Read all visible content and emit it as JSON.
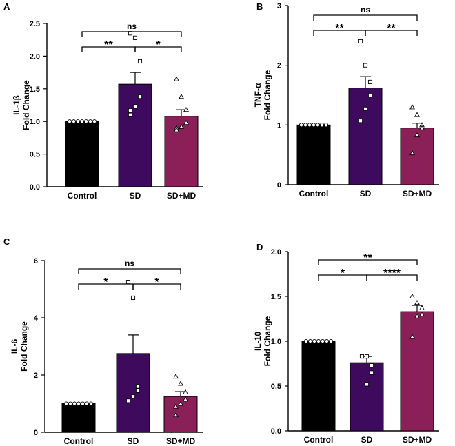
{
  "colors": {
    "control": "#000000",
    "sd": "#3d0a5e",
    "sdmd": "#8b1f58",
    "axis": "#000000"
  },
  "chart_data": [
    {
      "panel": "A",
      "type": "bar",
      "categories": [
        "Control",
        "SD",
        "SD+MD"
      ],
      "values": [
        1.0,
        1.57,
        1.08
      ],
      "errors": [
        0,
        0.18,
        0.1
      ],
      "ylabel_top": "IL-1β",
      "ylabel_bottom": "Fold Change",
      "ylim": [
        0,
        2.5
      ],
      "yticks": [
        "0.0",
        "0.5",
        "1.0",
        "1.5",
        "2.0",
        "2.5"
      ],
      "points": [
        [
          1.0,
          1.0,
          1.0,
          1.0,
          1.0,
          1.0,
          1.0
        ],
        [
          2.35,
          2.28,
          1.92,
          1.38,
          1.23,
          1.17,
          1.1
        ],
        [
          1.65,
          1.38,
          1.18,
          0.98,
          0.92,
          0.9,
          0.87
        ]
      ],
      "markers": [
        "circle",
        "square",
        "triangle"
      ],
      "comparisons": [
        {
          "from": 0,
          "to": 1,
          "label": "**",
          "level": 0
        },
        {
          "from": 1,
          "to": 2,
          "label": "*",
          "level": 0
        },
        {
          "from": 0,
          "to": 2,
          "label": "ns",
          "level": 1
        }
      ]
    },
    {
      "panel": "B",
      "type": "bar",
      "categories": [
        "Control",
        "SD",
        "SD+MD"
      ],
      "values": [
        1.0,
        1.62,
        0.95
      ],
      "errors": [
        0,
        0.19,
        0.08
      ],
      "ylabel_top": "TNF-α",
      "ylabel_bottom": "Fold Change",
      "ylim": [
        0,
        3
      ],
      "yticks": [
        "0",
        "1",
        "2",
        "3"
      ],
      "points": [
        [
          1.0,
          1.0,
          1.0,
          1.0,
          1.0,
          1.0,
          1.0
        ],
        [
          2.4,
          2.0,
          1.72,
          1.5,
          1.27,
          1.07
        ],
        [
          1.3,
          1.17,
          1.0,
          0.95,
          0.83,
          0.53
        ]
      ],
      "markers": [
        "circle",
        "square",
        "triangle"
      ],
      "comparisons": [
        {
          "from": 0,
          "to": 1,
          "label": "**",
          "level": 0
        },
        {
          "from": 1,
          "to": 2,
          "label": "**",
          "level": 0
        },
        {
          "from": 0,
          "to": 2,
          "label": "ns",
          "level": 1
        }
      ]
    },
    {
      "panel": "C",
      "type": "bar",
      "categories": [
        "Control",
        "SD",
        "SD+MD"
      ],
      "values": [
        1.0,
        2.75,
        1.25
      ],
      "errors": [
        0,
        0.65,
        0.17
      ],
      "ylabel_top": "IL-6",
      "ylabel_bottom": "Fold Change",
      "ylim": [
        0,
        6
      ],
      "yticks": [
        "0",
        "2",
        "4",
        "6"
      ],
      "points": [
        [
          1.0,
          1.0,
          1.0,
          1.0,
          1.0,
          1.0,
          1.0
        ],
        [
          5.25,
          4.7,
          1.6,
          1.45,
          1.25,
          1.1
        ],
        [
          1.95,
          1.7,
          1.4,
          1.15,
          1.0,
          0.9,
          0.6
        ]
      ],
      "markers": [
        "circle",
        "square",
        "triangle"
      ],
      "comparisons": [
        {
          "from": 0,
          "to": 1,
          "label": "*",
          "level": 0
        },
        {
          "from": 1,
          "to": 2,
          "label": "*",
          "level": 0
        },
        {
          "from": 0,
          "to": 2,
          "label": "ns",
          "level": 1
        }
      ]
    },
    {
      "panel": "D",
      "type": "bar",
      "categories": [
        "Control",
        "SD",
        "SD+MD"
      ],
      "values": [
        1.0,
        0.76,
        1.33
      ],
      "errors": [
        0,
        0.07,
        0.07
      ],
      "ylabel_top": "IL-10",
      "ylabel_bottom": "Fold Change",
      "ylim": [
        0,
        2.0
      ],
      "yticks": [
        "0.0",
        "0.5",
        "1.0",
        "1.5",
        "2.0"
      ],
      "points": [
        [
          1.0,
          1.0,
          1.0,
          1.0,
          1.0,
          1.0,
          1.0
        ],
        [
          0.83,
          0.83,
          0.73,
          0.65,
          0.52
        ],
        [
          1.5,
          1.43,
          1.37,
          1.3,
          1.28,
          1.05
        ]
      ],
      "markers": [
        "circle",
        "square",
        "triangle"
      ],
      "comparisons": [
        {
          "from": 0,
          "to": 1,
          "label": "*",
          "level": 0
        },
        {
          "from": 1,
          "to": 2,
          "label": "****",
          "level": 0
        },
        {
          "from": 0,
          "to": 2,
          "label": "**",
          "level": 1
        }
      ]
    }
  ]
}
